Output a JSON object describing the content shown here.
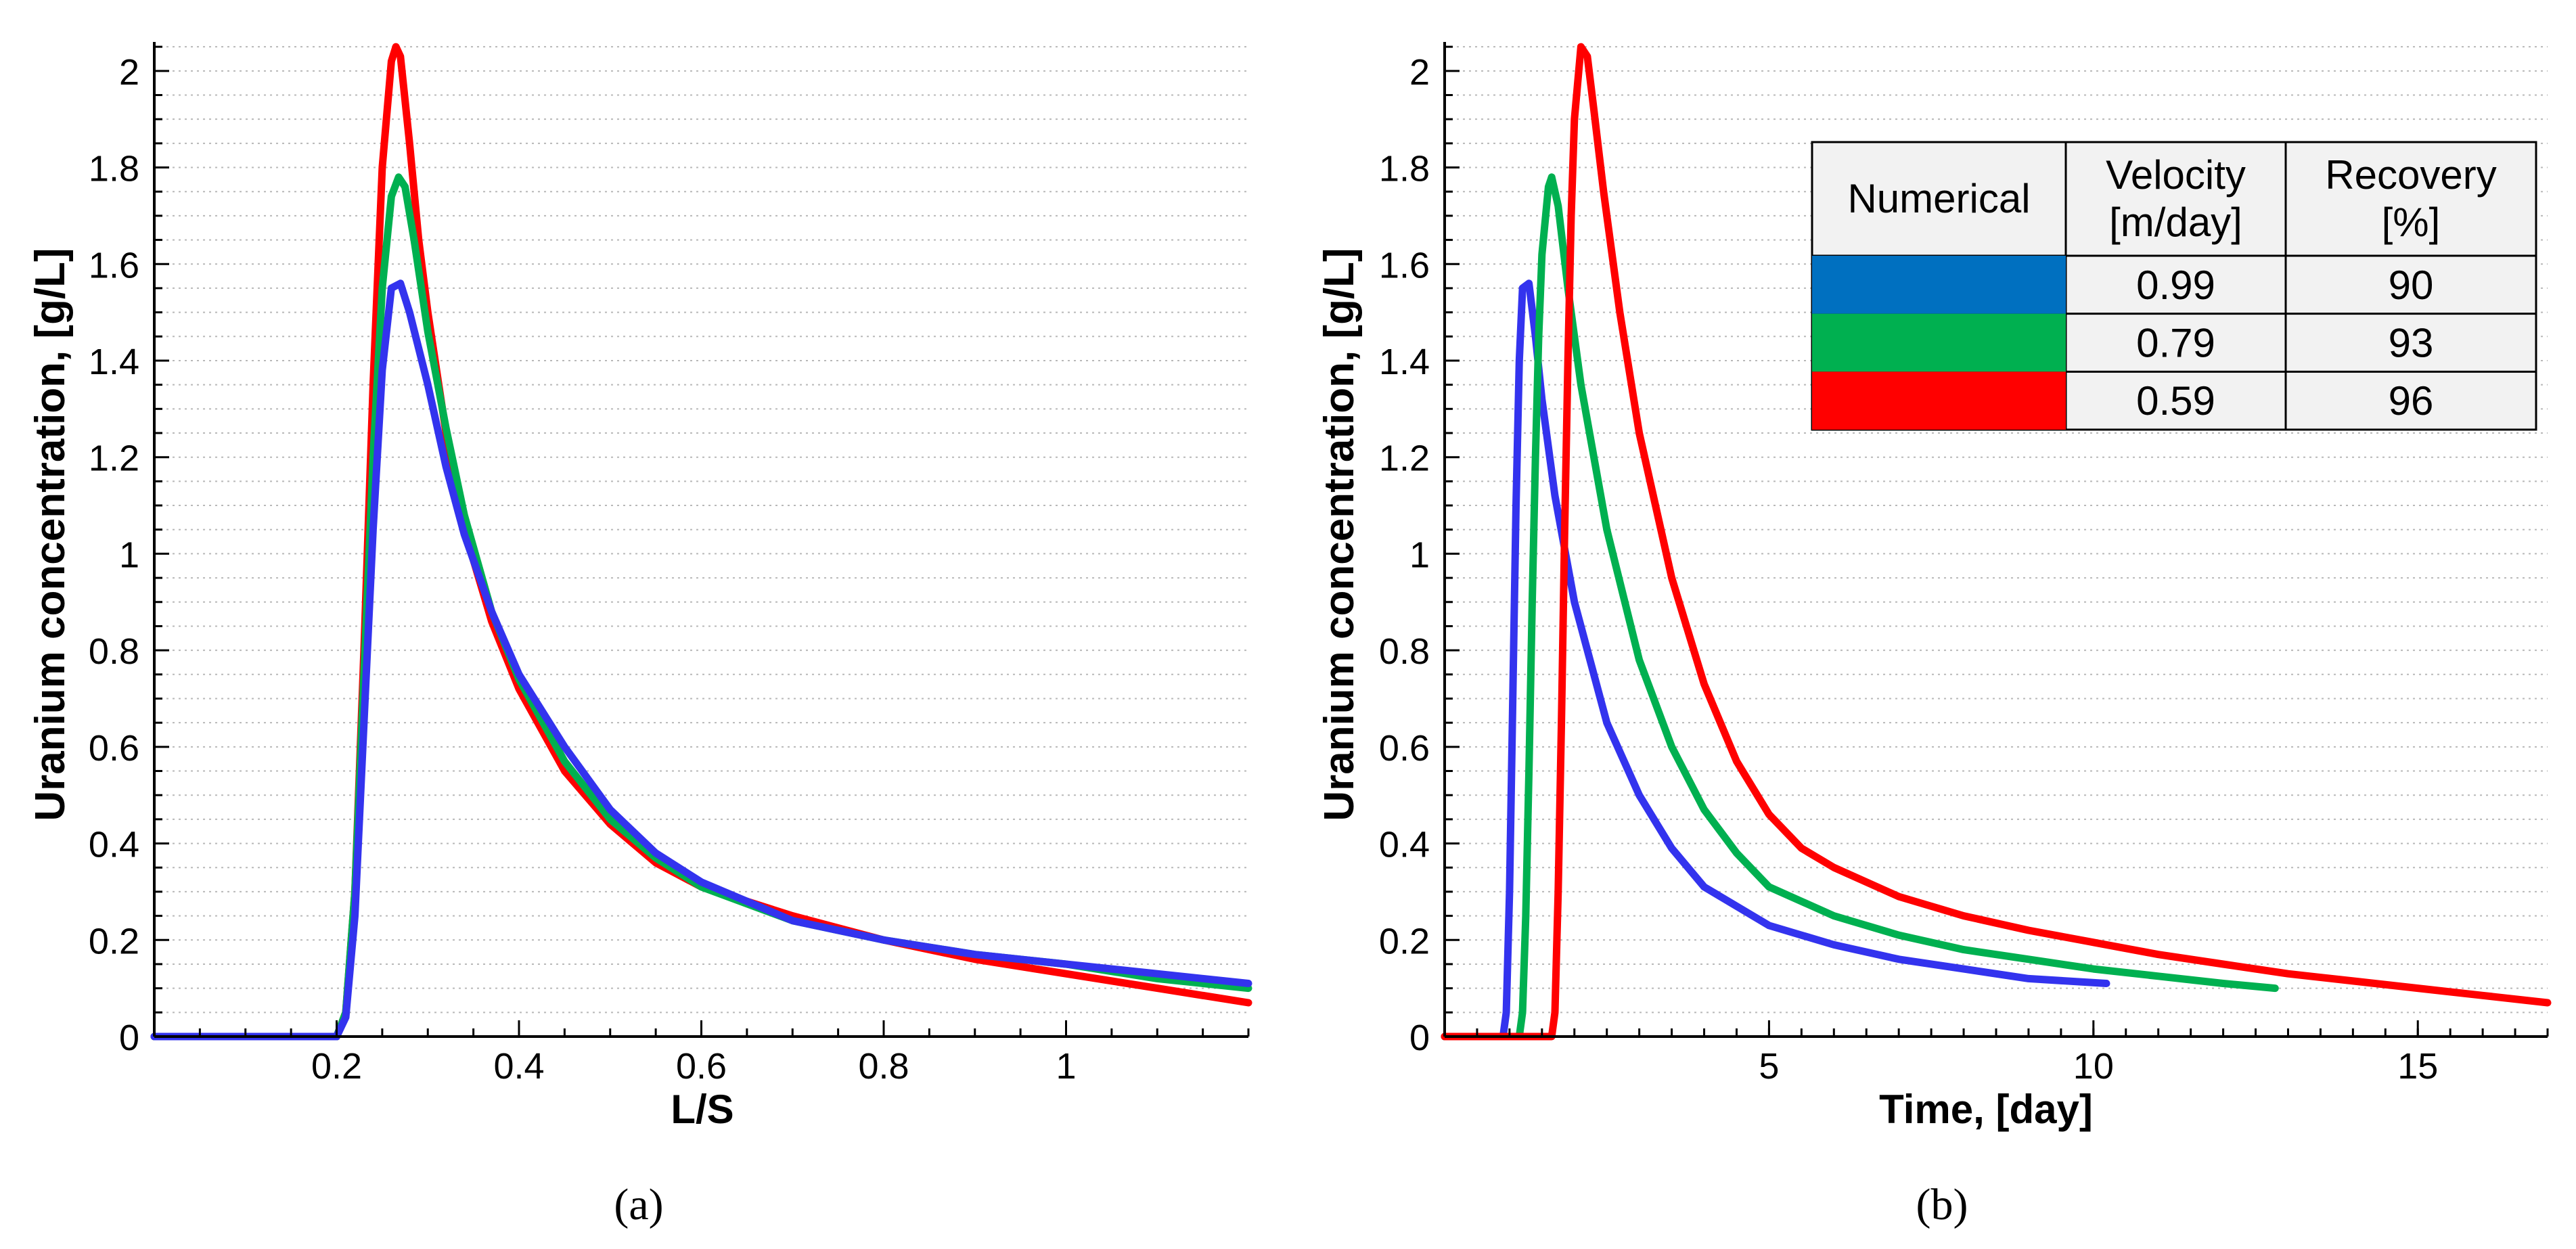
{
  "chart_data": [
    {
      "type": "line",
      "panel": "a",
      "caption": "(a)",
      "xlabel": "L/S",
      "ylabel": "Uranium concentration, [g/L]",
      "xlim": [
        0,
        1.2
      ],
      "ylim": [
        0,
        2.06
      ],
      "xticks": [
        0.2,
        0.4,
        0.6,
        0.8,
        1
      ],
      "xtick_labels": [
        "0.2",
        "0.4",
        "0.6",
        "0.8",
        "1"
      ],
      "yticks": [
        0,
        0.2,
        0.4,
        0.6,
        0.8,
        1,
        1.2,
        1.4,
        1.6,
        1.8,
        2
      ],
      "ytick_labels": [
        "0",
        "0.2",
        "0.4",
        "0.6",
        "0.8",
        "1",
        "1.2",
        "1.4",
        "1.6",
        "1.8",
        "2"
      ],
      "grid": "horizontal dotted",
      "series": [
        {
          "name": "0.59",
          "color": "#ff0000",
          "x": [
            0,
            0.2,
            0.21,
            0.22,
            0.23,
            0.24,
            0.25,
            0.26,
            0.265,
            0.27,
            0.28,
            0.29,
            0.3,
            0.32,
            0.34,
            0.37,
            0.4,
            0.45,
            0.5,
            0.55,
            0.6,
            0.7,
            0.8,
            0.9,
            1.0,
            1.1,
            1.2
          ],
          "y": [
            0,
            0,
            0.05,
            0.3,
            0.8,
            1.35,
            1.8,
            2.02,
            2.05,
            2.03,
            1.85,
            1.65,
            1.5,
            1.25,
            1.05,
            0.86,
            0.72,
            0.55,
            0.44,
            0.36,
            0.31,
            0.25,
            0.2,
            0.16,
            0.13,
            0.1,
            0.07
          ]
        },
        {
          "name": "0.79",
          "color": "#00b050",
          "x": [
            0,
            0.2,
            0.21,
            0.22,
            0.23,
            0.24,
            0.25,
            0.26,
            0.268,
            0.275,
            0.285,
            0.3,
            0.32,
            0.34,
            0.37,
            0.4,
            0.45,
            0.5,
            0.55,
            0.6,
            0.7,
            0.8,
            0.9,
            1.0,
            1.1,
            1.2
          ],
          "y": [
            0,
            0,
            0.05,
            0.3,
            0.75,
            1.2,
            1.55,
            1.74,
            1.78,
            1.76,
            1.65,
            1.46,
            1.26,
            1.08,
            0.88,
            0.74,
            0.57,
            0.45,
            0.37,
            0.31,
            0.24,
            0.2,
            0.17,
            0.15,
            0.12,
            0.1
          ]
        },
        {
          "name": "0.99",
          "color": "#3333ee",
          "x": [
            0,
            0.2,
            0.21,
            0.22,
            0.23,
            0.24,
            0.25,
            0.26,
            0.27,
            0.28,
            0.3,
            0.32,
            0.34,
            0.37,
            0.4,
            0.45,
            0.5,
            0.55,
            0.6,
            0.7,
            0.8,
            0.9,
            1.0,
            1.1,
            1.2
          ],
          "y": [
            0,
            0,
            0.04,
            0.25,
            0.65,
            1.05,
            1.38,
            1.55,
            1.56,
            1.5,
            1.35,
            1.18,
            1.04,
            0.88,
            0.75,
            0.6,
            0.47,
            0.38,
            0.32,
            0.24,
            0.2,
            0.17,
            0.15,
            0.13,
            0.11
          ]
        }
      ]
    },
    {
      "type": "line",
      "panel": "b",
      "caption": "(b)",
      "xlabel": "Time, [day]",
      "ylabel": "Uranium concentration, [g/L]",
      "xlim": [
        0,
        17
      ],
      "ylim": [
        0,
        2.06
      ],
      "xticks": [
        5,
        10,
        15
      ],
      "xtick_labels": [
        "5",
        "10",
        "15"
      ],
      "yticks": [
        0,
        0.2,
        0.4,
        0.6,
        0.8,
        1,
        1.2,
        1.4,
        1.6,
        1.8,
        2
      ],
      "ytick_labels": [
        "0",
        "0.2",
        "0.4",
        "0.6",
        "0.8",
        "1",
        "1.2",
        "1.4",
        "1.6",
        "1.8",
        "2"
      ],
      "grid": "horizontal dotted",
      "series": [
        {
          "name": "0.99",
          "color": "#3333ee",
          "x": [
            0,
            0.9,
            0.95,
            1.0,
            1.05,
            1.1,
            1.15,
            1.2,
            1.3,
            1.4,
            1.5,
            1.7,
            2.0,
            2.5,
            3.0,
            3.5,
            4.0,
            5.0,
            6.0,
            7.0,
            8.0,
            9.0,
            10.2
          ],
          "y": [
            0,
            0,
            0.05,
            0.3,
            0.7,
            1.1,
            1.4,
            1.55,
            1.56,
            1.45,
            1.32,
            1.12,
            0.9,
            0.65,
            0.5,
            0.39,
            0.31,
            0.23,
            0.19,
            0.16,
            0.14,
            0.12,
            0.11
          ]
        },
        {
          "name": "0.79",
          "color": "#00b050",
          "x": [
            0,
            1.15,
            1.2,
            1.25,
            1.3,
            1.35,
            1.4,
            1.45,
            1.5,
            1.6,
            1.65,
            1.75,
            1.9,
            2.1,
            2.5,
            3.0,
            3.5,
            4.0,
            4.5,
            5.0,
            6.0,
            7.0,
            8.0,
            9.0,
            10.0,
            11.0,
            12.0,
            12.8
          ],
          "y": [
            0,
            0,
            0.05,
            0.25,
            0.55,
            0.9,
            1.2,
            1.45,
            1.62,
            1.76,
            1.78,
            1.72,
            1.55,
            1.35,
            1.05,
            0.78,
            0.6,
            0.47,
            0.38,
            0.31,
            0.25,
            0.21,
            0.18,
            0.16,
            0.14,
            0.125,
            0.11,
            0.1
          ]
        },
        {
          "name": "0.59",
          "color": "#ff0000",
          "x": [
            0,
            1.65,
            1.7,
            1.75,
            1.8,
            1.85,
            1.9,
            1.95,
            2.0,
            2.1,
            2.2,
            2.3,
            2.45,
            2.7,
            3.0,
            3.5,
            4.0,
            4.5,
            5.0,
            5.5,
            6.0,
            7.0,
            8.0,
            9.0,
            10.0,
            11.0,
            12.0,
            13.0,
            14.0,
            15.0,
            16.0,
            17.0
          ],
          "y": [
            0,
            0,
            0.05,
            0.3,
            0.65,
            1.05,
            1.4,
            1.7,
            1.9,
            2.05,
            2.03,
            1.92,
            1.75,
            1.5,
            1.25,
            0.95,
            0.73,
            0.57,
            0.46,
            0.39,
            0.35,
            0.29,
            0.25,
            0.22,
            0.195,
            0.17,
            0.15,
            0.13,
            0.115,
            0.1,
            0.085,
            0.07
          ]
        }
      ]
    }
  ],
  "legend_table": {
    "header": [
      "Numerical",
      "Velocity\n[m/day]",
      "Recovery\n[%]"
    ],
    "header_lines": [
      [
        "Numerical"
      ],
      [
        "Velocity",
        "[m/day]"
      ],
      [
        "Recovery",
        "[%]"
      ]
    ],
    "rows": [
      {
        "color": "#0070c0",
        "velocity": "0.99",
        "recovery": "90"
      },
      {
        "color": "#00b050",
        "velocity": "0.79",
        "recovery": "93"
      },
      {
        "color": "#ff0000",
        "velocity": "0.59",
        "recovery": "96"
      }
    ],
    "placement": "top-right of panel (b)"
  }
}
